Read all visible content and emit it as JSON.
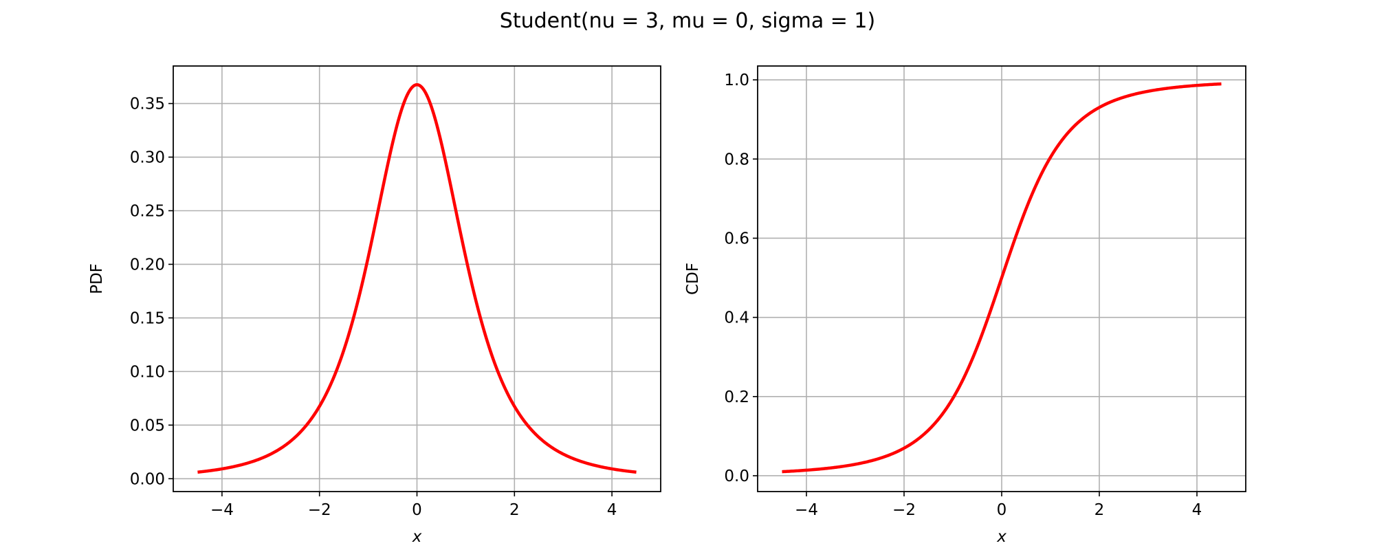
{
  "suptitle": "Student(nu = 3, mu = 0, sigma = 1)",
  "colors": {
    "curve": "#ff0000",
    "grid": "#b0b0b0",
    "frame": "#000000"
  },
  "chart_data": [
    {
      "type": "line",
      "function": "student_t_pdf",
      "params": {
        "nu": 3,
        "mu": 0,
        "sigma": 1
      },
      "xlabel": "x",
      "ylabel": "PDF",
      "xlim": [
        -5,
        5
      ],
      "ylim": [
        -0.012,
        0.385
      ],
      "x_range": [
        -4.5,
        4.5
      ],
      "xticks": [
        -4,
        -2,
        0,
        2,
        4
      ],
      "xtick_labels": [
        "−4",
        "−2",
        "0",
        "2",
        "4"
      ],
      "yticks": [
        0.0,
        0.05,
        0.1,
        0.15,
        0.2,
        0.25,
        0.3,
        0.35
      ],
      "ytick_labels": [
        "0.00",
        "0.05",
        "0.10",
        "0.15",
        "0.20",
        "0.25",
        "0.30",
        "0.35"
      ],
      "grid": true,
      "series": [
        {
          "name": "PDF",
          "color": "#ff0000"
        }
      ]
    },
    {
      "type": "line",
      "function": "student_t_cdf",
      "params": {
        "nu": 3,
        "mu": 0,
        "sigma": 1
      },
      "xlabel": "x",
      "ylabel": "CDF",
      "xlim": [
        -5,
        5
      ],
      "ylim": [
        -0.04,
        1.035
      ],
      "x_range": [
        -4.5,
        4.5
      ],
      "xticks": [
        -4,
        -2,
        0,
        2,
        4
      ],
      "xtick_labels": [
        "−4",
        "−2",
        "0",
        "2",
        "4"
      ],
      "yticks": [
        0.0,
        0.2,
        0.4,
        0.6,
        0.8,
        1.0
      ],
      "ytick_labels": [
        "0.0",
        "0.2",
        "0.4",
        "0.6",
        "0.8",
        "1.0"
      ],
      "grid": true,
      "series": [
        {
          "name": "CDF",
          "color": "#ff0000"
        }
      ]
    }
  ]
}
